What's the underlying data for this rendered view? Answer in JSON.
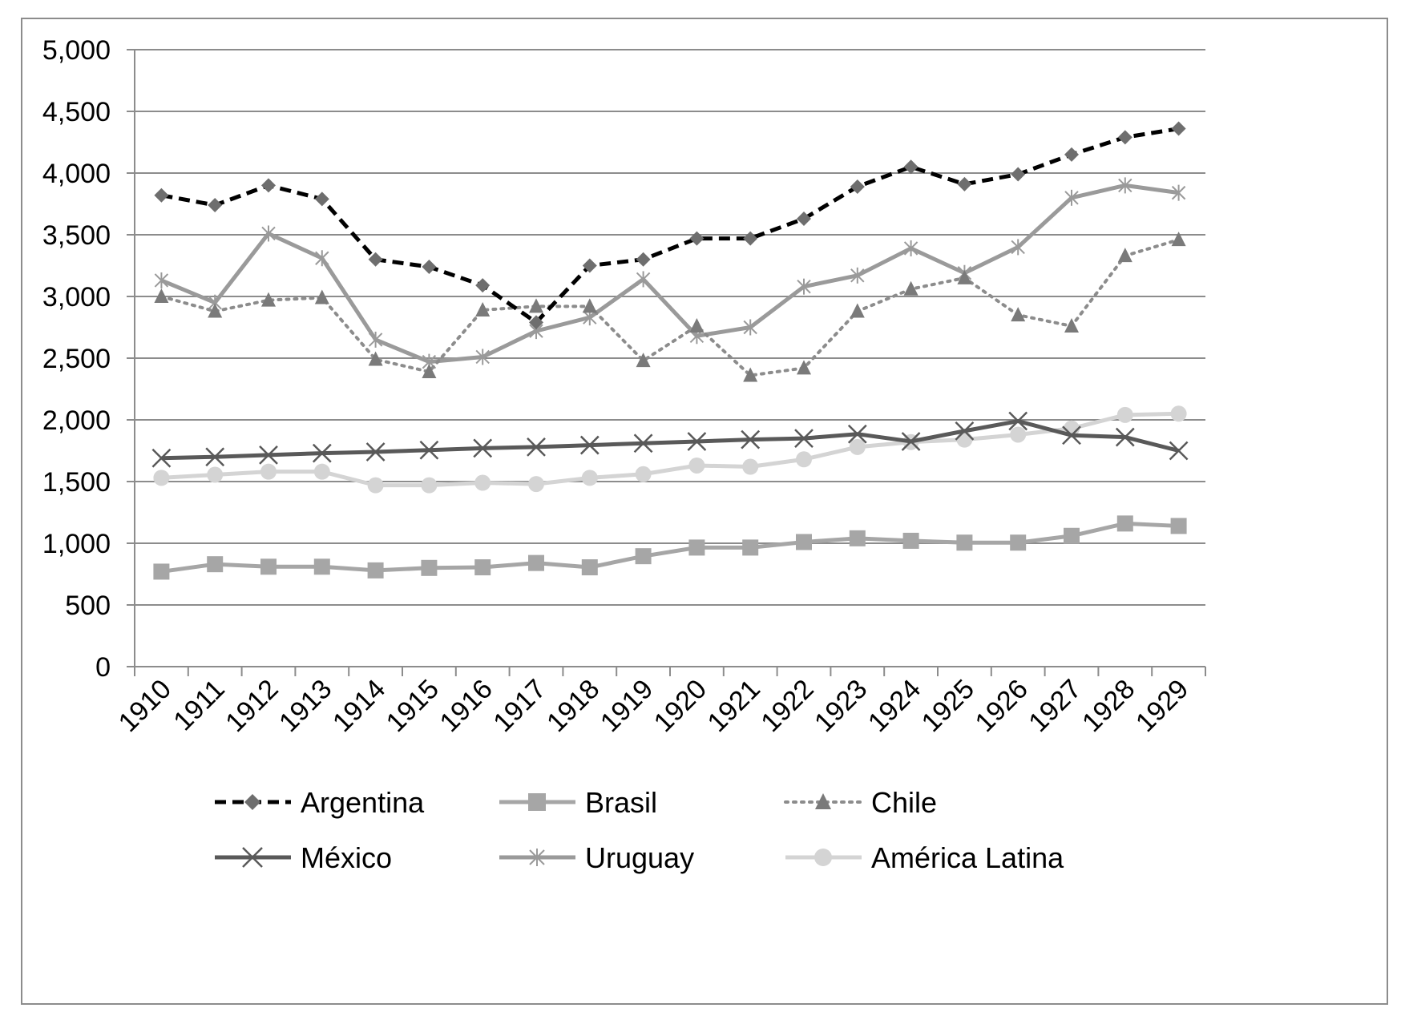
{
  "chart_data": {
    "type": "line",
    "title": "",
    "xlabel": "",
    "ylabel": "",
    "ylim": [
      0,
      5000
    ],
    "y_ticks": [
      "0",
      "500",
      "1,000",
      "1,500",
      "2,000",
      "2,500",
      "3,000",
      "3,500",
      "4,000",
      "4,500",
      "5,000"
    ],
    "y_tick_values": [
      0,
      500,
      1000,
      1500,
      2000,
      2500,
      3000,
      3500,
      4000,
      4500,
      5000
    ],
    "grid": true,
    "legend_position": "bottom",
    "categories": [
      "1910",
      "1911",
      "1912",
      "1913",
      "1914",
      "1915",
      "1916",
      "1917",
      "1918",
      "1919",
      "1920",
      "1921",
      "1922",
      "1923",
      "1924",
      "1925",
      "1926",
      "1927",
      "1928",
      "1929"
    ],
    "series": [
      {
        "name": "Argentina",
        "color": "#000000",
        "marker_color": "#6e6e6e",
        "marker": "diamond",
        "dash": "dashed",
        "values": [
          3820,
          3740,
          3900,
          3790,
          3300,
          3240,
          3090,
          2790,
          3250,
          3300,
          3470,
          3470,
          3630,
          3890,
          4050,
          3910,
          3990,
          4150,
          4290,
          4360
        ]
      },
      {
        "name": "Brasil",
        "color": "#a6a6a6",
        "marker_color": "#a6a6a6",
        "marker": "square",
        "dash": "solid",
        "values": [
          770,
          830,
          810,
          810,
          780,
          800,
          805,
          840,
          805,
          895,
          965,
          965,
          1010,
          1040,
          1020,
          1005,
          1005,
          1060,
          1160,
          1140
        ]
      },
      {
        "name": "Chile",
        "color": "#8c8c8c",
        "marker_color": "#7a7a7a",
        "marker": "triangle",
        "dash": "dotted",
        "values": [
          3000,
          2880,
          2970,
          2990,
          2490,
          2390,
          2890,
          2920,
          2920,
          2480,
          2760,
          2360,
          2420,
          2880,
          3060,
          3150,
          2850,
          2760,
          3330,
          3460
        ]
      },
      {
        "name": "México",
        "color": "#595959",
        "marker_color": "#595959",
        "marker": "x",
        "dash": "solid",
        "values": [
          1690,
          1700,
          1715,
          1730,
          1740,
          1755,
          1770,
          1780,
          1795,
          1810,
          1825,
          1840,
          1850,
          1885,
          1825,
          1910,
          1990,
          1875,
          1860,
          1750
        ]
      },
      {
        "name": "Uruguay",
        "color": "#9a9a9a",
        "marker_color": "#9a9a9a",
        "marker": "star",
        "dash": "solid",
        "values": [
          3130,
          2950,
          3510,
          3310,
          2650,
          2470,
          2510,
          2720,
          2830,
          3140,
          2680,
          2750,
          3080,
          3170,
          3390,
          3190,
          3400,
          3800,
          3900,
          3840
        ]
      },
      {
        "name": "América Latina",
        "color": "#d4d4d4",
        "marker_color": "#d4d4d4",
        "marker": "circle",
        "dash": "solid",
        "values": [
          1530,
          1555,
          1580,
          1580,
          1470,
          1470,
          1490,
          1480,
          1530,
          1560,
          1630,
          1620,
          1680,
          1780,
          1820,
          1840,
          1880,
          1930,
          2040,
          2050
        ]
      }
    ]
  }
}
